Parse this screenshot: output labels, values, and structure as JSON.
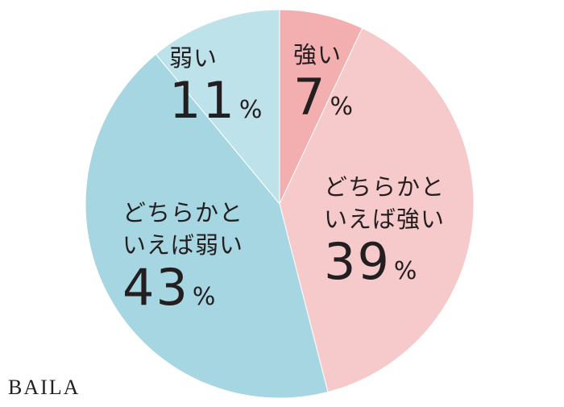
{
  "chart_data": {
    "type": "pie",
    "categories": [
      "強い",
      "どちらかといえば強い",
      "どちらかといえば弱い",
      "弱い"
    ],
    "values": [
      7,
      39,
      43,
      11
    ],
    "unit": "%",
    "colors": [
      "#f3aeb0",
      "#f6caca",
      "#a6d6e1",
      "#bde2ea"
    ],
    "watermark": "BAILA"
  }
}
